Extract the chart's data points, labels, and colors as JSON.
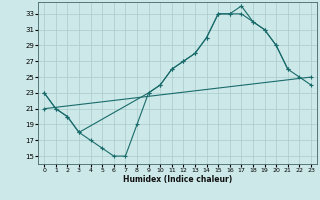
{
  "title": "",
  "xlabel": "Humidex (Indice chaleur)",
  "background_color": "#cce8e8",
  "grid_color": "#aacccc",
  "line_color": "#1a6b6b",
  "xlim": [
    -0.5,
    23.5
  ],
  "ylim": [
    14,
    34.5
  ],
  "yticks": [
    15,
    17,
    19,
    21,
    23,
    25,
    27,
    29,
    31,
    33
  ],
  "xticks": [
    0,
    1,
    2,
    3,
    4,
    5,
    6,
    7,
    8,
    9,
    10,
    11,
    12,
    13,
    14,
    15,
    16,
    17,
    18,
    19,
    20,
    21,
    22,
    23
  ],
  "series": [
    {
      "x": [
        0,
        1,
        2,
        3,
        4,
        5,
        6,
        7,
        8,
        9,
        10,
        11,
        12,
        13,
        14,
        15,
        16,
        17,
        18,
        19,
        20,
        21
      ],
      "y": [
        23,
        21,
        20,
        18,
        17,
        16,
        15,
        15,
        19,
        23,
        24,
        26,
        27,
        28,
        30,
        33,
        33,
        34,
        32,
        31,
        29,
        26
      ]
    },
    {
      "x": [
        0,
        1,
        2,
        3,
        9,
        10,
        11,
        12,
        13,
        14,
        15,
        16,
        17,
        18,
        19,
        20,
        21,
        22,
        23
      ],
      "y": [
        23,
        21,
        20,
        18,
        23,
        24,
        26,
        27,
        28,
        30,
        33,
        33,
        33,
        32,
        31,
        29,
        26,
        25,
        24
      ]
    },
    {
      "x": [
        0,
        23
      ],
      "y": [
        21,
        25
      ]
    }
  ]
}
